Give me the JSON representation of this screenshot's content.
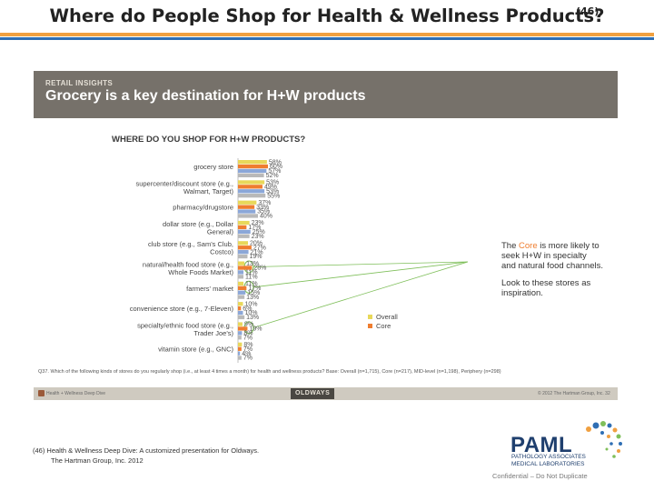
{
  "slide": {
    "title": "Where do People Shop for Health & Wellness Products?",
    "title_ref": "(46)"
  },
  "report": {
    "kicker": "RETAIL INSIGHTS",
    "heading": "Grocery is a key destination for H+W products",
    "callout_p1_prefix": "The ",
    "callout_p1_core": "Core",
    "callout_p1_suffix": " is more likely to seek H+W in specialty and natural food channels.",
    "callout_p2": "Look to these stores as inspiration.",
    "footnote": "Q37. Which of the following kinds of stores do you regularly shop (i.e., at least 4 times a month) for health and wellness products? Base: Overall (n=1,715), Core (n=217), MID-level (n=1,198), Periphery (n=298)",
    "footer_left": "Health + Wellness Deep Dive",
    "footer_center": "OLDWAYS",
    "footer_right": "© 2012 The Hartman Group, Inc.   32"
  },
  "citation": {
    "line1": "(46)  Health & Wellness Deep Dive:  A customized presentation for Oldways.",
    "line2": "The Hartman Group, Inc. 2012"
  },
  "brand": {
    "name": "PAML",
    "sub1": "PATHOLOGY ASSOCIATES",
    "sub2": "MEDICAL LABORATORIES",
    "confidential": "Confidential – Do Not Duplicate"
  },
  "colors": {
    "overall": "#e8d85a",
    "core": "#ef7d2f",
    "mid": "#8ba7d8",
    "periphery": "#b9b9b9",
    "highlight": "#7fbf5a"
  },
  "chart_data": {
    "type": "bar",
    "orientation": "horizontal",
    "title": "WHERE DO YOU SHOP FOR H+W PRODUCTS?",
    "categories": [
      "grocery store",
      "supercenter/discount store (e.g., Walmart, Target)",
      "pharmacy/drugstore",
      "dollar store (e.g., Dollar General)",
      "club store (e.g., Sam's Club, Costco)",
      "natural/health food store (e.g., Whole Foods Market)",
      "farmers' market",
      "convenience store (e.g., 7-Eleven)",
      "specialty/ethnic food store (e.g., Trader Joe's)",
      "vitamin store (e.g., GNC)"
    ],
    "series": [
      {
        "name": "Overall",
        "values": [
          58,
          53,
          37,
          23,
          20,
          13,
          11,
          10,
          9,
          8
        ]
      },
      {
        "name": "Core",
        "values": [
          60,
          49,
          33,
          17,
          27,
          28,
          17,
          6,
          19,
          7
        ]
      },
      {
        "name": "",
        "values": [
          57,
          53,
          35,
          25,
          21,
          11,
          15,
          10,
          8,
          4
        ]
      },
      {
        "name": "",
        "values": [
          52,
          55,
          40,
          23,
          19,
          11,
          13,
          13,
          7,
          7
        ]
      }
    ],
    "legend": [
      "Overall",
      "Core"
    ],
    "legend_position": "lower-right",
    "value_suffix": "%",
    "xlim": [
      0,
      100
    ],
    "highlighted_categories": [
      "natural/health food store (e.g., Whole Foods Market)",
      "farmers' market",
      "specialty/ethnic food store (e.g., Trader Joe's)"
    ]
  }
}
